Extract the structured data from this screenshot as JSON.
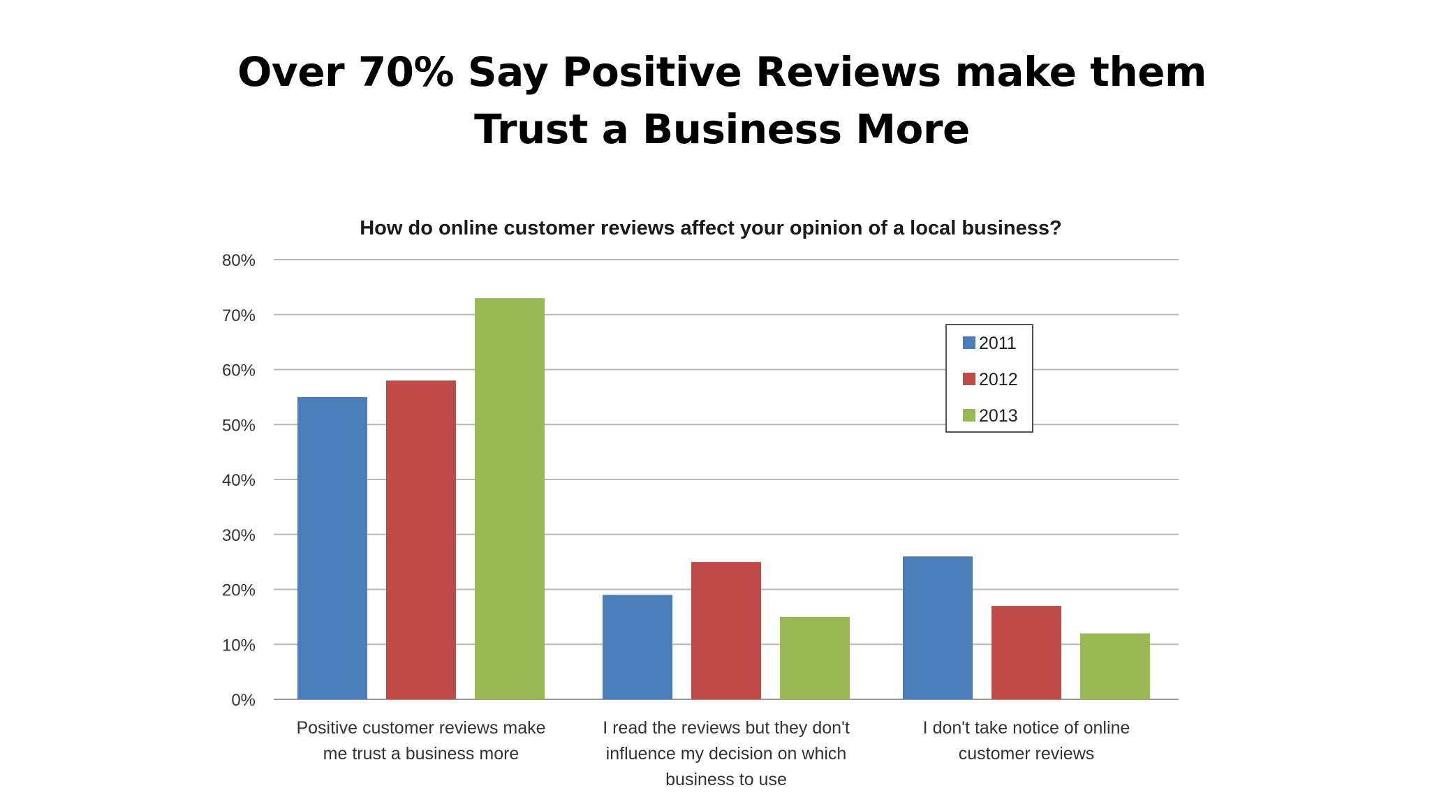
{
  "slide": {
    "title_line1": "Over 70% Say Positive Reviews make them",
    "title_line2": "Trust a Business More"
  },
  "chart_data": {
    "type": "bar",
    "title": "How do online customer reviews affect your opinion of a local business?",
    "xlabel": "",
    "ylabel": "",
    "ylim": [
      0,
      80
    ],
    "yticks": [
      "0%",
      "10%",
      "20%",
      "30%",
      "40%",
      "50%",
      "60%",
      "70%",
      "80%"
    ],
    "grid": true,
    "legend_position": "top-right",
    "categories": [
      [
        "Positive customer reviews make",
        "me trust a business more"
      ],
      [
        "I read the reviews but they don't",
        "influence my decision on which",
        "business to use"
      ],
      [
        "I don't take notice of online",
        "customer reviews"
      ]
    ],
    "series": [
      {
        "name": "2011",
        "color": "#4a7ebb",
        "values": [
          55,
          19,
          26
        ]
      },
      {
        "name": "2012",
        "color": "#be4b48",
        "values": [
          58,
          25,
          17
        ]
      },
      {
        "name": "2013",
        "color": "#98b954",
        "values": [
          73,
          15,
          12
        ]
      }
    ]
  }
}
